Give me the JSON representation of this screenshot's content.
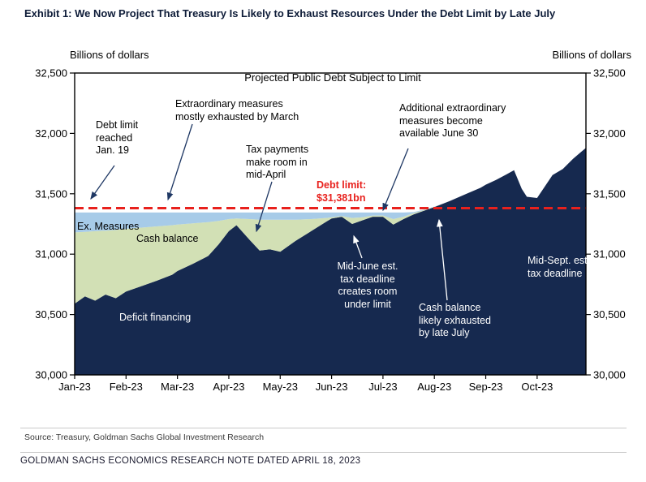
{
  "page": {
    "title": "Exhibit 1: We Now Project That Treasury Is Likely to Exhaust Resources Under the Debt Limit by Late July",
    "source_line": "Source: Treasury, Goldman Sachs Global Investment Research",
    "footer_note": "GOLDMAN SACHS ECONOMICS RESEARCH NOTE DATED APRIL 18, 2023"
  },
  "axis": {
    "left_unit_label": "Billions of dollars",
    "right_unit_label": "Billions of dollars"
  },
  "chart_data": {
    "type": "area",
    "stacked": true,
    "title": "Projected Public Debt Subject to Limit",
    "xlabel": "",
    "ylabel": "Billions of dollars",
    "x_unit": "months since Jan-2023 tick (0 = Jan-23, 9 = Oct-23)",
    "x_tick_labels": [
      "Jan-23",
      "Feb-23",
      "Mar-23",
      "Apr-23",
      "May-23",
      "Jun-23",
      "Jul-23",
      "Aug-23",
      "Sep-23",
      "Oct-23"
    ],
    "y_ticks": [
      30000,
      30500,
      31000,
      31500,
      32000,
      32500
    ],
    "y_tick_labels": [
      "30,000",
      "30,500",
      "31,000",
      "31,500",
      "32,000",
      "32,500"
    ],
    "ylim": [
      30000,
      32500
    ],
    "xlim": [
      0,
      9.95
    ],
    "grid": false,
    "legend": "labels drawn inside areas",
    "debt_limit": {
      "value": 31381,
      "label": "Debt limit:\n$31,381bn",
      "color": "#e8211d",
      "style": "dashed"
    },
    "stack_note": "cumulative_top arrays are absolute $bn top edges of each stacked band; band thickness = this top minus the band below",
    "x": [
      0,
      0.2,
      0.4,
      0.6,
      0.8,
      1.0,
      1.3,
      1.6,
      1.9,
      2.0,
      2.3,
      2.6,
      2.8,
      3.0,
      3.15,
      3.4,
      3.6,
      3.8,
      4.0,
      4.3,
      4.6,
      4.9,
      5.0,
      5.2,
      5.4,
      5.6,
      5.8,
      6.0,
      6.2,
      6.4,
      6.6,
      6.8,
      7.0,
      7.3,
      7.6,
      7.9,
      8.0,
      8.2,
      8.4,
      8.55,
      8.7,
      8.8,
      9.0,
      9.15,
      9.3,
      9.5,
      9.7,
      9.85,
      9.95
    ],
    "series": [
      {
        "key": "deficit",
        "name": "Deficit financing",
        "color": "#16294f",
        "note": "top edge = projected public debt subject to limit, $bn",
        "cumulative_top": [
          30590,
          30650,
          30615,
          30665,
          30635,
          30690,
          30735,
          30780,
          30830,
          30860,
          30920,
          30985,
          31080,
          31190,
          31240,
          31120,
          31030,
          31040,
          31020,
          31110,
          31190,
          31270,
          31295,
          31310,
          31250,
          31280,
          31310,
          31310,
          31245,
          31290,
          31330,
          31360,
          31390,
          31440,
          31495,
          31550,
          31575,
          31615,
          31660,
          31695,
          31540,
          31475,
          31465,
          31560,
          31655,
          31705,
          31790,
          31845,
          31880
        ]
      },
      {
        "key": "cash",
        "name": "Cash balance",
        "color": "#d2e0b5",
        "note": "cumulative top = debt + cash balance",
        "cumulative_top": [
          31180,
          31185,
          31190,
          31195,
          31200,
          31210,
          31220,
          31230,
          31240,
          31245,
          31255,
          31265,
          31275,
          31290,
          31295,
          31290,
          31285,
          31285,
          31285,
          31285,
          31290,
          31300,
          31305,
          31315,
          31300,
          31305,
          31320,
          31320,
          31290,
          31310,
          31340,
          31365,
          31392,
          31440,
          31495,
          31550,
          31575,
          31615,
          31660,
          31695,
          31540,
          31475,
          31465,
          31560,
          31655,
          31705,
          31790,
          31845,
          31880
        ]
      },
      {
        "key": "exmeasures",
        "name": "Ex. Measures",
        "color": "#a7cbe8",
        "note": "cumulative top = debt + cash + extraordinary measures",
        "cumulative_top": [
          31345,
          31345,
          31345,
          31345,
          31345,
          31345,
          31345,
          31345,
          31345,
          31345,
          31345,
          31345,
          31345,
          31345,
          31345,
          31345,
          31345,
          31345,
          31345,
          31345,
          31345,
          31345,
          31345,
          31345,
          31345,
          31345,
          31345,
          31345,
          31345,
          31345,
          31348,
          31368,
          31394,
          31440,
          31495,
          31550,
          31575,
          31615,
          31660,
          31695,
          31540,
          31475,
          31465,
          31560,
          31655,
          31705,
          31790,
          31845,
          31880
        ]
      }
    ],
    "colors": {
      "arrow_dark": "#1f3864",
      "arrow_light": "#ffffff",
      "plot_border": "#000000"
    },
    "annotations": [
      {
        "id": "debt-limit-reached",
        "text": "Debt limit\nreached\nJan. 19",
        "color": "#000000"
      },
      {
        "id": "extraordinary-measures",
        "text": "Extraordinary measures\nmostly exhausted by March",
        "color": "#000000"
      },
      {
        "id": "tax-payments",
        "text": "Tax payments\nmake room in\nmid-April",
        "color": "#000000"
      },
      {
        "id": "additional-measures",
        "text": "Additional extraordinary\nmeasures become\navailable June 30",
        "color": "#000000"
      },
      {
        "id": "debt-limit-label",
        "text": "Debt limit:\n$31,381bn",
        "color": "#e8211d"
      },
      {
        "id": "ex-measures-label",
        "text": "Ex. Measures",
        "color": "#000000"
      },
      {
        "id": "cash-balance-label",
        "text": "Cash balance",
        "color": "#000000"
      },
      {
        "id": "deficit-financing-label",
        "text": "Deficit financing",
        "color": "#ffffff"
      },
      {
        "id": "mid-june-deadline",
        "text": "Mid-June est.\ntax deadline\ncreates room\nunder limit",
        "color": "#ffffff"
      },
      {
        "id": "cash-exhausted",
        "text": "Cash balance\nlikely exhausted\nby late July",
        "color": "#ffffff"
      },
      {
        "id": "mid-sept-deadline",
        "text": "Mid-Sept. est.\ntax deadline",
        "color": "#ffffff"
      }
    ]
  }
}
